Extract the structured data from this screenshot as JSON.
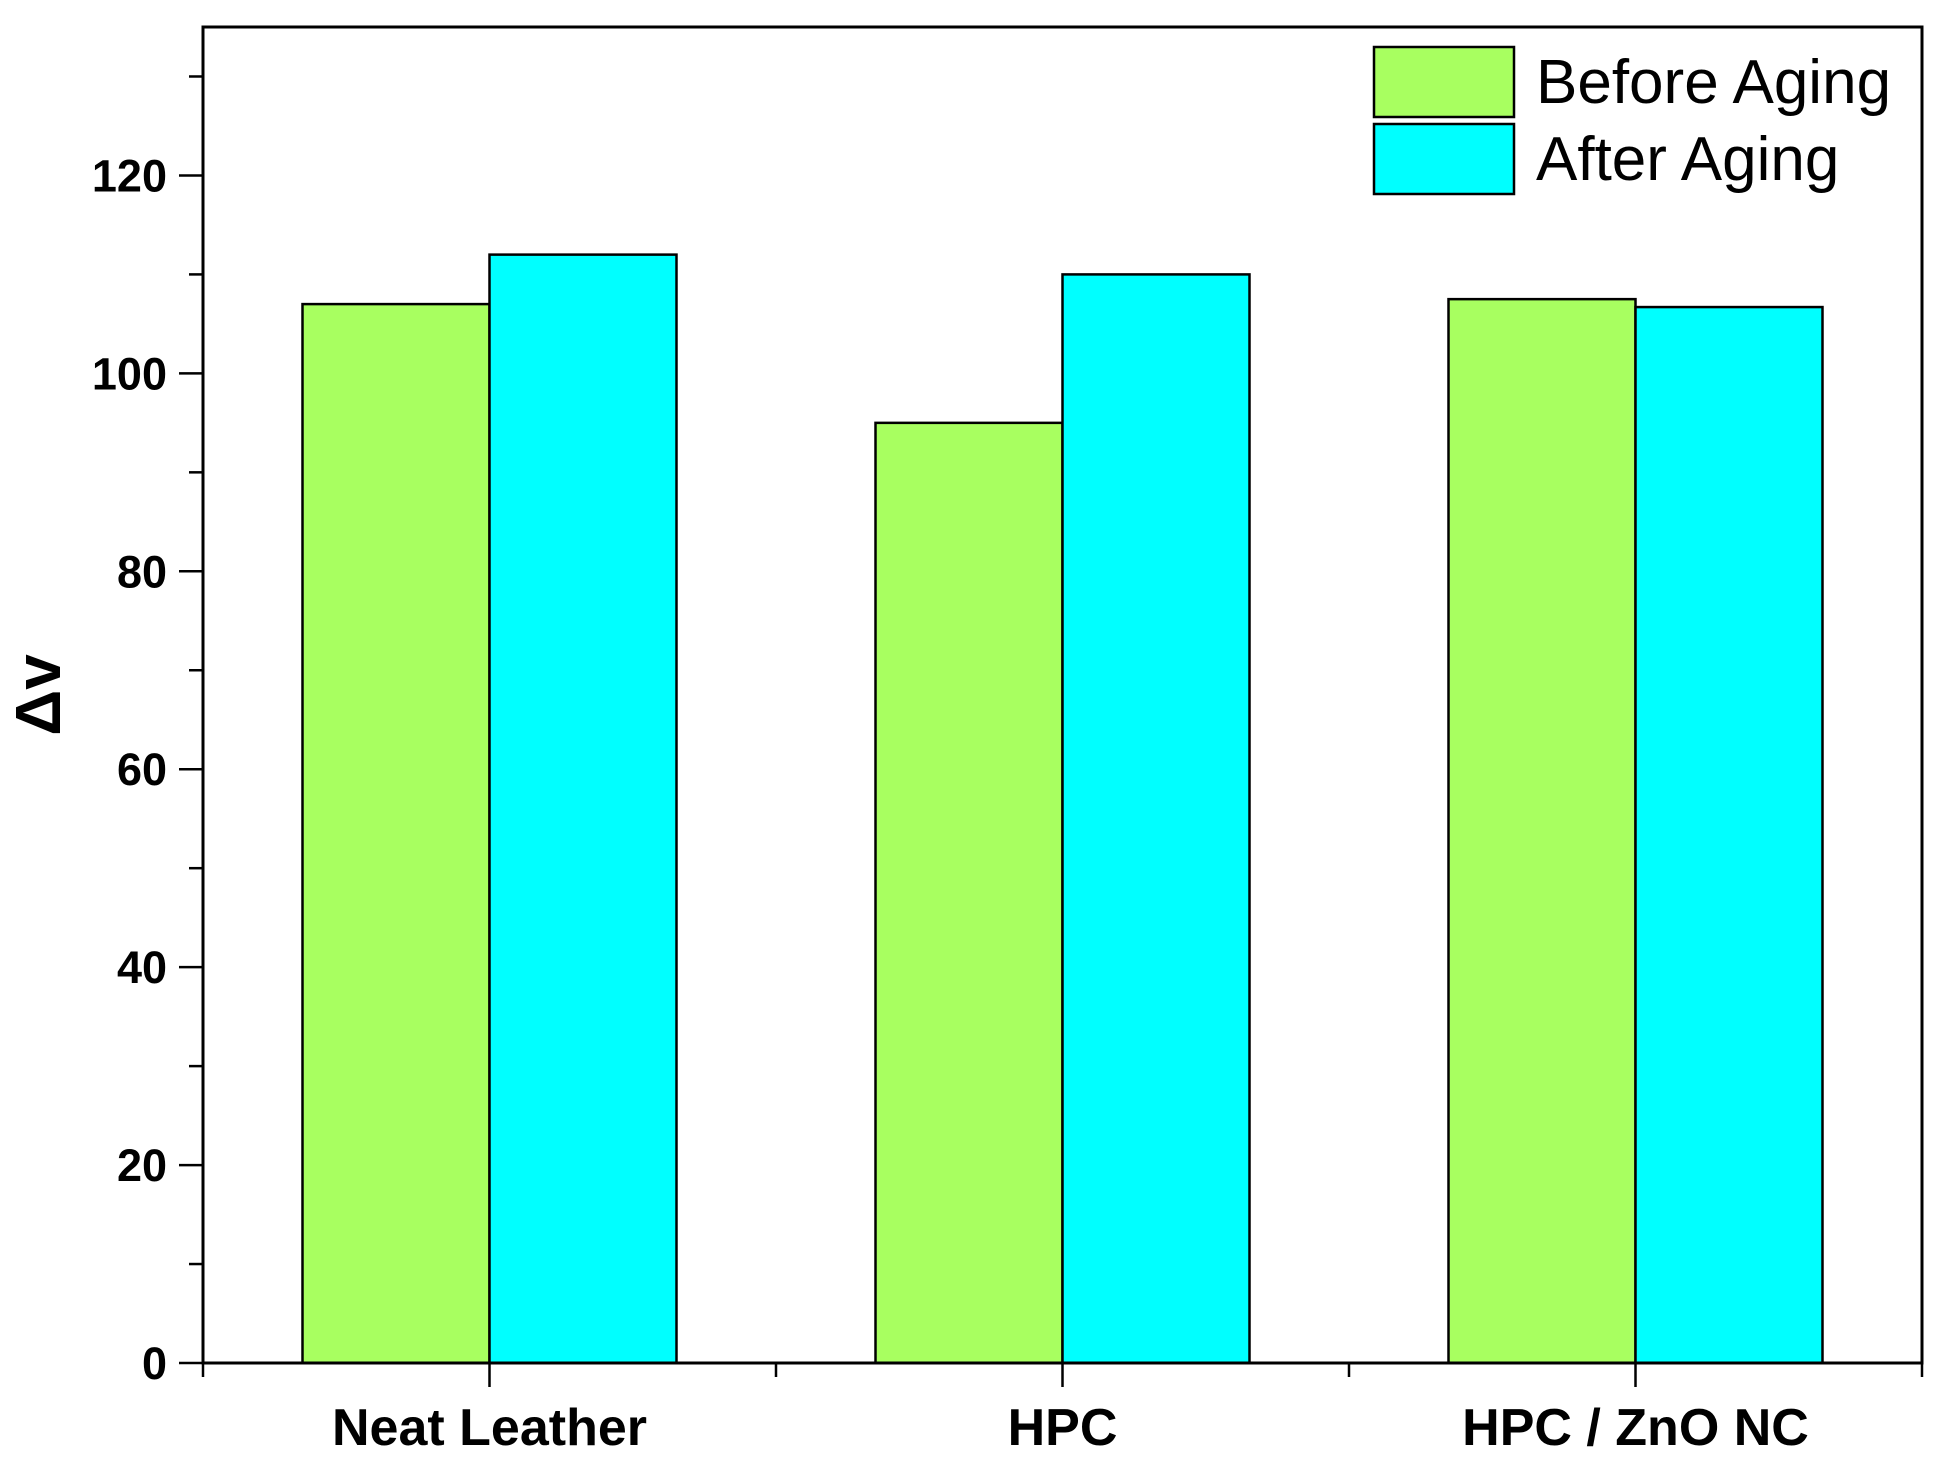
{
  "chart_data": {
    "type": "bar",
    "categories": [
      "Neat Leather",
      "HPC",
      "HPC / ZnO NC"
    ],
    "series": [
      {
        "name": "Before Aging",
        "values": [
          107,
          95,
          107.5
        ],
        "color": "#a8ff60"
      },
      {
        "name": "After Aging",
        "values": [
          112,
          110,
          106.7
        ],
        "color": "#00ffff"
      }
    ],
    "xlabel": "",
    "ylabel": "Δv",
    "ylim": [
      0,
      135
    ],
    "yticks": [
      0,
      20,
      40,
      60,
      80,
      100,
      120
    ],
    "yminor_step": 10,
    "grid": false,
    "legend_position": "top-right"
  }
}
